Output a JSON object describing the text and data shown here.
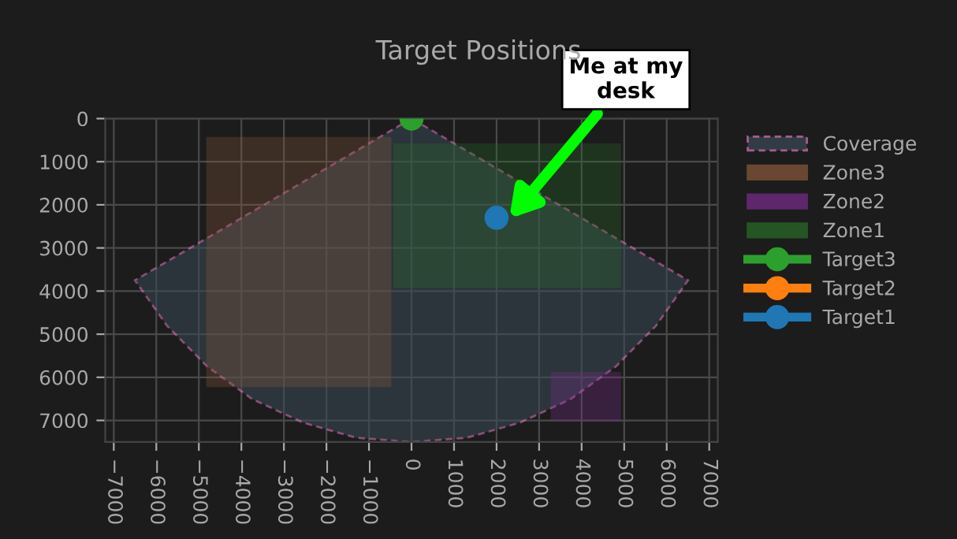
{
  "chart_data": {
    "type": "scatter",
    "title": "Target Positions",
    "xlim": [
      -7200,
      7200
    ],
    "ylim": [
      7500,
      0
    ],
    "xticks": [
      -7000,
      -6000,
      -5000,
      -4000,
      -3000,
      -2000,
      -1000,
      0,
      1000,
      2000,
      3000,
      4000,
      5000,
      6000,
      7000
    ],
    "yticks": [
      0,
      1000,
      2000,
      3000,
      4000,
      5000,
      6000,
      7000
    ],
    "grid": true,
    "legend": "right",
    "series": [
      {
        "name": "Coverage",
        "type": "area",
        "color": "#e377c2",
        "line_style": "dashed",
        "x": [
          0,
          -6500,
          -5750,
          -4800,
          -3750,
          -2550,
          -1300,
          0,
          1300,
          2550,
          3750,
          4800,
          5750,
          6500,
          0
        ],
        "values": [
          0,
          3750,
          4800,
          5750,
          6500,
          7050,
          7400,
          7500,
          7400,
          7050,
          6500,
          5750,
          4800,
          3750,
          0
        ]
      },
      {
        "name": "Zone3",
        "type": "area",
        "color": "#8c5a3c",
        "x": [
          -4800,
          -500,
          -500,
          -4800,
          -4800
        ],
        "values": [
          450,
          450,
          6200,
          6200,
          450
        ]
      },
      {
        "name": "Zone2",
        "type": "area",
        "color": "#7b2d8e",
        "x": [
          3300,
          4900,
          4900,
          3300,
          3300
        ],
        "values": [
          5900,
          5900,
          7000,
          7000,
          5900
        ]
      },
      {
        "name": "Zone1",
        "type": "area",
        "color": "#2a6e2a",
        "x": [
          -400,
          4900,
          4900,
          -400,
          -400
        ],
        "values": [
          600,
          600,
          3900,
          3900,
          600
        ]
      },
      {
        "name": "Target3",
        "marker": "circle",
        "color": "#2ca02c",
        "x": [
          0
        ],
        "values": [
          0
        ]
      },
      {
        "name": "Target2",
        "marker": "circle",
        "color": "#ff7f0e",
        "x": [
          null
        ],
        "values": [
          null
        ]
      },
      {
        "name": "Target1",
        "marker": "circle",
        "color": "#1f77b4",
        "x": [
          2000
        ],
        "values": [
          2300
        ]
      }
    ],
    "annotations": [
      "Me at my\ndesk"
    ]
  }
}
